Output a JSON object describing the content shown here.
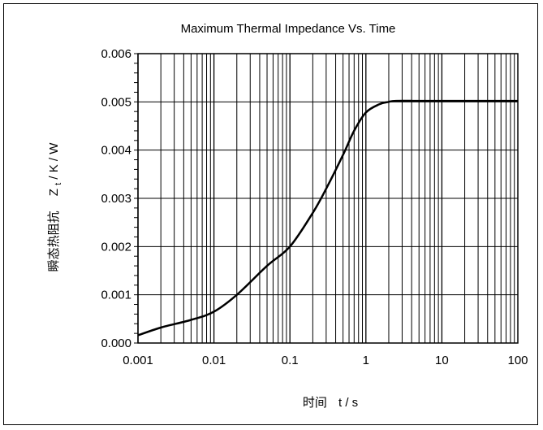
{
  "chart_data": {
    "type": "line",
    "title": "Maximum Thermal Impedance Vs. Time",
    "xlabel_cn": "时间",
    "xlabel": "t / s",
    "ylabel_cn": "瞬态热阻抗",
    "ylabel_main": "Z",
    "ylabel_sub": "t",
    "ylabel_unit": " / K / W",
    "x_scale": "log",
    "xlim": [
      0.001,
      100
    ],
    "ylim": [
      0,
      0.006
    ],
    "grid": true,
    "x_ticks": [
      "0.001",
      "0.01",
      "0.1",
      "1",
      "10",
      "100"
    ],
    "y_ticks": [
      "0.000",
      "0.001",
      "0.002",
      "0.003",
      "0.004",
      "0.005",
      "0.006"
    ],
    "series": [
      {
        "x": [
          0.001,
          0.002,
          0.005,
          0.01,
          0.02,
          0.05,
          0.1,
          0.2,
          0.3,
          0.5,
          0.7,
          1.0,
          1.5,
          2.0,
          2.5,
          5,
          10,
          100
        ],
        "y": [
          0.00016,
          0.00032,
          0.00048,
          0.00065,
          0.001,
          0.0016,
          0.002,
          0.0027,
          0.0032,
          0.0039,
          0.0044,
          0.00478,
          0.00495,
          0.005,
          0.00502,
          0.00502,
          0.00502,
          0.00502
        ]
      }
    ]
  }
}
